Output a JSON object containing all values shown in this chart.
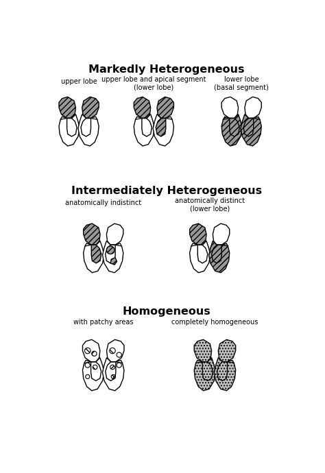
{
  "title1": "Markedly Heterogeneous",
  "title2": "Intermediately Heterogeneous",
  "title3": "Homogeneous",
  "label1a": "upper lobe",
  "label1b": "upper lobe and apical segment\n(lower lobe)",
  "label1c": "lower lobe\n(basal segment)",
  "label2a": "anatomically indistinct",
  "label2b": "anatomically distinct\n(lower lobe)",
  "label3a": "with patchy areas",
  "label3b": "completely homogeneous",
  "bg_color": "#ffffff",
  "ec": "#000000",
  "shade_col_dense": "#999999",
  "shade_col_dot": "#c0c0c0"
}
